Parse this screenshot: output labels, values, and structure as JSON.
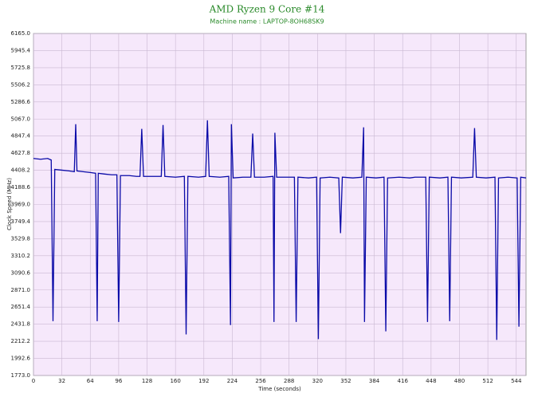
{
  "chart_data": {
    "type": "line",
    "title": "AMD Ryzen 9 Core #14",
    "subtitle": "Machine name : LAPTOP-8OH68SK9",
    "x_label": "Time (seconds)",
    "y_label": "Clock Speed (MHz)",
    "color": "#0a0aa8",
    "grid": true,
    "xlim": [
      0,
      555
    ],
    "ylim": [
      1773.0,
      6165.0
    ],
    "xticks": [
      0,
      32,
      64,
      96,
      128,
      160,
      192,
      224,
      256,
      288,
      320,
      352,
      384,
      416,
      448,
      480,
      512,
      544
    ],
    "yticks": [
      {
        "value": 1773.0,
        "label": "1773.0"
      },
      1992.6,
      2212.2,
      2431.8,
      2651.4,
      {
        "value": 2871.0,
        "label": "2871.0"
      },
      3090.6,
      3310.2,
      3529.8,
      3749.4,
      {
        "value": 3969.0,
        "label": "3969.0"
      },
      4188.6,
      4408.2,
      4627.8,
      4847.4,
      {
        "value": 5067.0,
        "label": "5067.0"
      },
      5286.6,
      5506.2,
      5725.8,
      5945.4,
      {
        "value": 6165.0,
        "label": "6165.0"
      }
    ],
    "x": [
      0,
      8,
      16,
      20,
      22,
      24,
      32,
      40,
      46,
      47.6,
      49,
      56,
      64,
      70,
      71.8,
      73,
      80,
      88,
      94,
      96,
      98,
      108,
      116,
      120,
      122,
      124,
      134,
      144,
      146,
      148,
      160,
      170,
      172,
      174,
      186,
      194,
      196,
      198,
      210,
      220,
      222,
      223,
      225,
      236,
      245,
      247,
      249,
      260,
      270,
      271,
      272,
      274,
      286,
      294,
      296,
      298,
      310,
      319,
      321,
      323,
      334,
      344,
      346,
      348,
      360,
      370,
      372,
      373,
      375,
      386,
      395,
      397,
      399,
      412,
      424,
      430,
      442,
      444,
      446,
      458,
      467,
      469,
      471,
      482,
      495,
      497,
      499,
      510,
      520,
      522,
      524,
      535,
      545,
      547,
      549,
      555
    ],
    "values": [
      4560,
      4550,
      4560,
      4540,
      2470,
      4420,
      4410,
      4400,
      4390,
      5000,
      4400,
      4390,
      4380,
      4370,
      2470,
      4370,
      4360,
      4350,
      4350,
      2460,
      4340,
      4340,
      4330,
      4330,
      4940,
      4330,
      4330,
      4330,
      4990,
      4330,
      4320,
      4330,
      2300,
      4330,
      4320,
      4330,
      5050,
      4330,
      4320,
      4330,
      2420,
      5000,
      4310,
      4320,
      4320,
      4880,
      4320,
      4320,
      4330,
      2460,
      4890,
      4320,
      4320,
      4320,
      2460,
      4320,
      4310,
      4320,
      2240,
      4310,
      4320,
      4310,
      3600,
      4320,
      4310,
      4320,
      4960,
      2460,
      4320,
      4310,
      4320,
      2340,
      4310,
      4320,
      4310,
      4320,
      4320,
      2460,
      4320,
      4310,
      4320,
      2470,
      4320,
      4310,
      4320,
      4950,
      4320,
      4310,
      4320,
      2230,
      4310,
      4320,
      4310,
      2400,
      4320,
      4310
    ]
  }
}
